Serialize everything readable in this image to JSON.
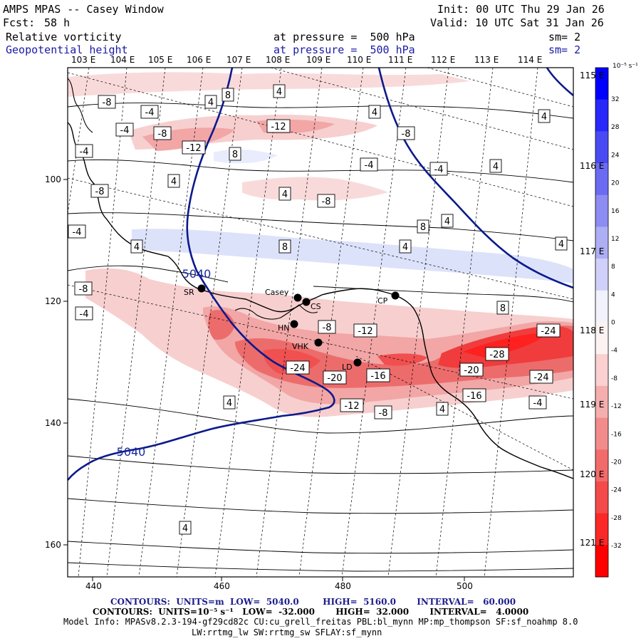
{
  "header": {
    "model": "AMPS MPAS -- Casey Window",
    "init": "Init: 00 UTC Thu 29 Jan 26",
    "fcst_label": "Fcst:",
    "fcst_value": "58 h",
    "valid": "Valid: 10 UTC Sat 31 Jan 26",
    "field1": "Relative vorticity",
    "field1_level": "at pressure =  500 hPa",
    "field1_sm": "sm= 2",
    "field2": "Geopotential height",
    "field2_level": "at pressure =  500 hPa",
    "field2_sm": "sm= 2"
  },
  "colors": {
    "neg_strong": "#ff0000",
    "neg_mid": "#f05b5b",
    "neg_light": "#f7c9c9",
    "pos_light": "#dde2fb",
    "pos_strong": "#0000ff",
    "height_line": "#0a1a8c",
    "border": "#000000"
  },
  "top_lon_labels": [
    "103 E",
    "104 E",
    "105 E",
    "106 E",
    "107 E",
    "108 E",
    "109 E",
    "110 E",
    "111 E",
    "112 E",
    "113 E",
    "114 E"
  ],
  "right_lon_labels": [
    "115 E",
    "116 E",
    "117 E",
    "118 E",
    "119 E",
    "120 E",
    "121 E"
  ],
  "x_ticks": [
    "440",
    "460",
    "480",
    "500"
  ],
  "y_ticks": [
    "100",
    "120",
    "140",
    "160"
  ],
  "colorbar": {
    "unit": "10⁻⁵ s⁻¹",
    "labels": [
      "32",
      "28",
      "24",
      "20",
      "16",
      "12",
      "8",
      "4",
      "0",
      "-4",
      "-8",
      "-12",
      "-16",
      "-20",
      "-24",
      "-28",
      "-32"
    ]
  },
  "stations": [
    {
      "code": "SR"
    },
    {
      "code": "Casey"
    },
    {
      "code": "CS"
    },
    {
      "code": "CP"
    },
    {
      "code": "HN"
    },
    {
      "code": "VHK"
    },
    {
      "code": "LD"
    }
  ],
  "height_contour_labels": [
    "5040",
    "5040"
  ],
  "vorticity_labels": [
    "-8",
    "-4",
    "-4",
    "-8",
    "-12",
    "4",
    "8",
    "4",
    "8",
    "4",
    "-4",
    "-8",
    "-12",
    "-8",
    "4",
    "-4",
    "4",
    "-8",
    "-4",
    "4",
    "4",
    "8",
    "8",
    "4",
    "-4",
    "-8",
    "-4",
    "-12",
    "-8",
    "-24",
    "-20",
    "-16",
    "-12",
    "-8",
    "-20",
    "-24",
    "-28",
    "-24",
    "-16",
    "-4",
    "4",
    "4",
    "4",
    "4",
    "8",
    "4",
    "4"
  ],
  "footer": {
    "contours1": "CONTOURS:  UNITS=m  LOW=  5040.0        HIGH=  5160.0       INTERVAL=   60.000",
    "contours2": "CONTOURS:  UNITS=10⁻⁵ s⁻¹   LOW=  -32.000       HIGH=  32.000       INTERVAL=   4.0000",
    "model_info": "Model Info: MPASv8.2.3-194-gf29cd82c CU:cu_grell_freitas PBL:bl_mynn MP:mp_thompson SF:sf_noahmp 8.0",
    "model_info2": "LW:rrtmg_lw SW:rrtmg_sw SFLAY:sf_mynn"
  }
}
